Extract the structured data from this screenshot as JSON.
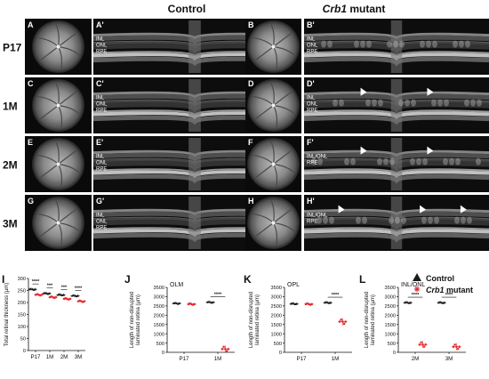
{
  "header": {
    "control": "Control",
    "mutant_italic": "Crb1",
    "mutant_rest": " mutant"
  },
  "rows": [
    {
      "age": "P17",
      "fundus_ctrl": "A",
      "oct_ctrl": "A'",
      "fundus_mut": "B",
      "oct_mut": "B'",
      "ctrl_layers": [
        "INL",
        "ONL",
        "RPE"
      ],
      "mut_layers": [
        "INL",
        "ONL",
        "RPE"
      ],
      "arrows": 0
    },
    {
      "age": "1M",
      "fundus_ctrl": "C",
      "oct_ctrl": "C'",
      "fundus_mut": "D",
      "oct_mut": "D'",
      "ctrl_layers": [
        "INL",
        "ONL",
        "RPE"
      ],
      "mut_layers": [
        "INL",
        "ONL",
        "RPE"
      ],
      "arrows": 2
    },
    {
      "age": "2M",
      "fundus_ctrl": "E",
      "oct_ctrl": "E'",
      "fundus_mut": "F",
      "oct_mut": "F'",
      "ctrl_layers": [
        "INL",
        "ONL",
        "RPE"
      ],
      "mut_layers": [
        "INL/ONL",
        "RPE"
      ],
      "arrows": 2
    },
    {
      "age": "3M",
      "fundus_ctrl": "G",
      "oct_ctrl": "G'",
      "fundus_mut": "H",
      "oct_mut": "H'",
      "ctrl_layers": [
        "INL",
        "ONL",
        "RPE"
      ],
      "mut_layers": [
        "INL/ONL",
        "RPE"
      ],
      "arrows": 3
    }
  ],
  "legend": {
    "control": "Control",
    "mutant_italic": "Crb1",
    "mutant_rest": " mutant",
    "control_color": "#1a1a1a",
    "mutant_color": "#e8262c"
  },
  "chart_data": [
    {
      "panel": "I",
      "type": "scatter",
      "ylabel": "Total retinal thickness (µm)",
      "ylim": [
        0,
        300
      ],
      "yticks": [
        0,
        50,
        100,
        150,
        200,
        250,
        300
      ],
      "categories": [
        "P17",
        "1M",
        "2M",
        "3M"
      ],
      "series": [
        {
          "name": "Control",
          "values": [
            255,
            238,
            232,
            228
          ]
        },
        {
          "name": "Crb1 mutant",
          "values": [
            232,
            222,
            215,
            205
          ]
        }
      ],
      "significance": [
        "****",
        "***",
        "***",
        "****"
      ]
    },
    {
      "panel": "J",
      "type": "scatter",
      "title": "OLM",
      "ylabel": "Length of non-disrupted laminated retina (µm)",
      "ylim": [
        0,
        3500
      ],
      "yticks": [
        0,
        500,
        1000,
        1500,
        2000,
        2500,
        3000,
        3500
      ],
      "categories": [
        "P17",
        "1M"
      ],
      "series": [
        {
          "name": "Control",
          "values": [
            2640,
            2700
          ]
        },
        {
          "name": "Crb1 mutant",
          "values": [
            2600,
            180
          ]
        }
      ],
      "significance": [
        "",
        "****"
      ]
    },
    {
      "panel": "K",
      "type": "scatter",
      "title": "OPL",
      "ylabel": "Length of non-disrupted laminated retina (µm)",
      "ylim": [
        0,
        3500
      ],
      "yticks": [
        0,
        500,
        1000,
        1500,
        2000,
        2500,
        3000,
        3500
      ],
      "categories": [
        "P17",
        "1M"
      ],
      "series": [
        {
          "name": "Control",
          "values": [
            2620,
            2680
          ]
        },
        {
          "name": "Crb1 mutant",
          "values": [
            2600,
            1650
          ]
        }
      ],
      "significance": [
        "",
        "****"
      ]
    },
    {
      "panel": "L",
      "type": "scatter",
      "title": "INL/ONL",
      "ylabel": "Length of non-disrupted laminated retina (µm)",
      "ylim": [
        0,
        3500
      ],
      "yticks": [
        0,
        500,
        1000,
        1500,
        2000,
        2500,
        3000,
        3500
      ],
      "categories": [
        "2M",
        "3M"
      ],
      "series": [
        {
          "name": "Control",
          "values": [
            2680,
            2680
          ]
        },
        {
          "name": "Crb1 mutant",
          "values": [
            420,
            300
          ]
        }
      ],
      "significance": [
        "****",
        "****"
      ]
    }
  ]
}
